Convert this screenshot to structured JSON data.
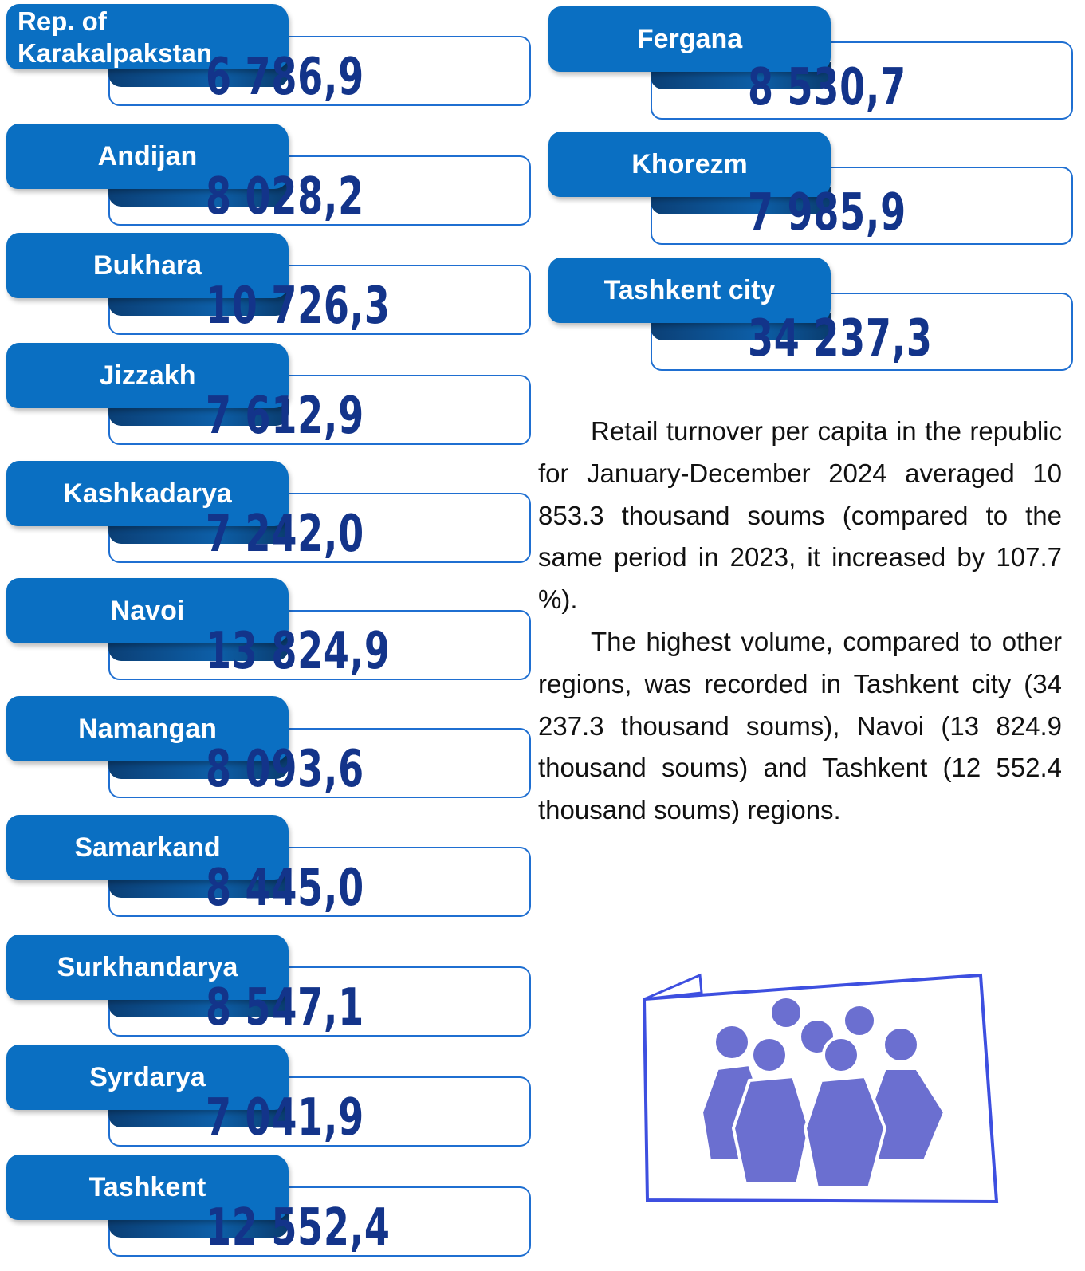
{
  "left_regions": [
    {
      "name": "Rep. of Karakalpakstan",
      "value": "6 786,9"
    },
    {
      "name": "Andijan",
      "value": "8 028,2"
    },
    {
      "name": "Bukhara",
      "value": "10 726,3"
    },
    {
      "name": "Jizzakh",
      "value": "7 612,9"
    },
    {
      "name": "Kashkadarya",
      "value": "7 242,0"
    },
    {
      "name": "Navoi",
      "value": "13 824,9"
    },
    {
      "name": "Namangan",
      "value": "8 093,6"
    },
    {
      "name": "Samarkand",
      "value": "8 445,0"
    },
    {
      "name": "Surkhandarya",
      "value": "8 547,1"
    },
    {
      "name": "Syrdarya",
      "value": "7 041,9"
    },
    {
      "name": "Tashkent",
      "value": "12 552,4"
    }
  ],
  "right_regions": [
    {
      "name": "Fergana",
      "value": "8 530,7"
    },
    {
      "name": "Khorezm",
      "value": "7 985,9"
    },
    {
      "name": "Tashkent city",
      "value": "34 237,3"
    }
  ],
  "paragraphs": [
    "Retail turnover per capita in the republic for January-December 2024 averaged 10 853.3 thousand soums (compared to the same period in 2023, it increased by 107.7 %).",
    "The highest volume, compared to other regions, was recorded in Tashkent city (34 237.3 thousand soums), Navoi (13 824.9 thousand soums) and Tashkent (12 552.4 thousand soums) regions."
  ]
}
